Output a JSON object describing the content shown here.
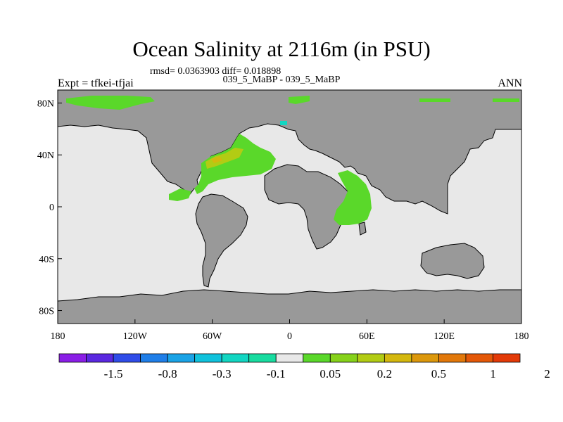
{
  "title": "Ocean Salinity at 2116m (in PSU)",
  "stats": "rmsd= 0.0363903 diff= 0.018898",
  "subtitle": "039_5_MaBP - 039_5_MaBP",
  "left_label": "Expt = tfkei-tfjai",
  "right_label": "ANN",
  "x_ticks": [
    "180",
    "120W",
    "60W",
    "0",
    "60E",
    "120E",
    "180"
  ],
  "y_ticks": [
    "80N",
    "40N",
    "0",
    "40S",
    "80S"
  ],
  "colorbar": {
    "colors": [
      "#8a1ee6",
      "#5a28e0",
      "#2f4ce8",
      "#1f7ee8",
      "#1aa3e6",
      "#10c2dc",
      "#12d6c2",
      "#18dca0",
      "#e8e8e8",
      "#5ad82a",
      "#86d21a",
      "#b2cc14",
      "#d4b80e",
      "#dc980c",
      "#e2780a",
      "#e45808",
      "#e33a08"
    ],
    "labels": [
      "-1.5",
      "-0.8",
      "-0.3",
      "-0.1",
      "0.05",
      "0.2",
      "0.5",
      "1",
      "2"
    ]
  },
  "map_colors": {
    "ocean": "#e8e8e8",
    "land": "#999999",
    "coast": "#000000"
  }
}
